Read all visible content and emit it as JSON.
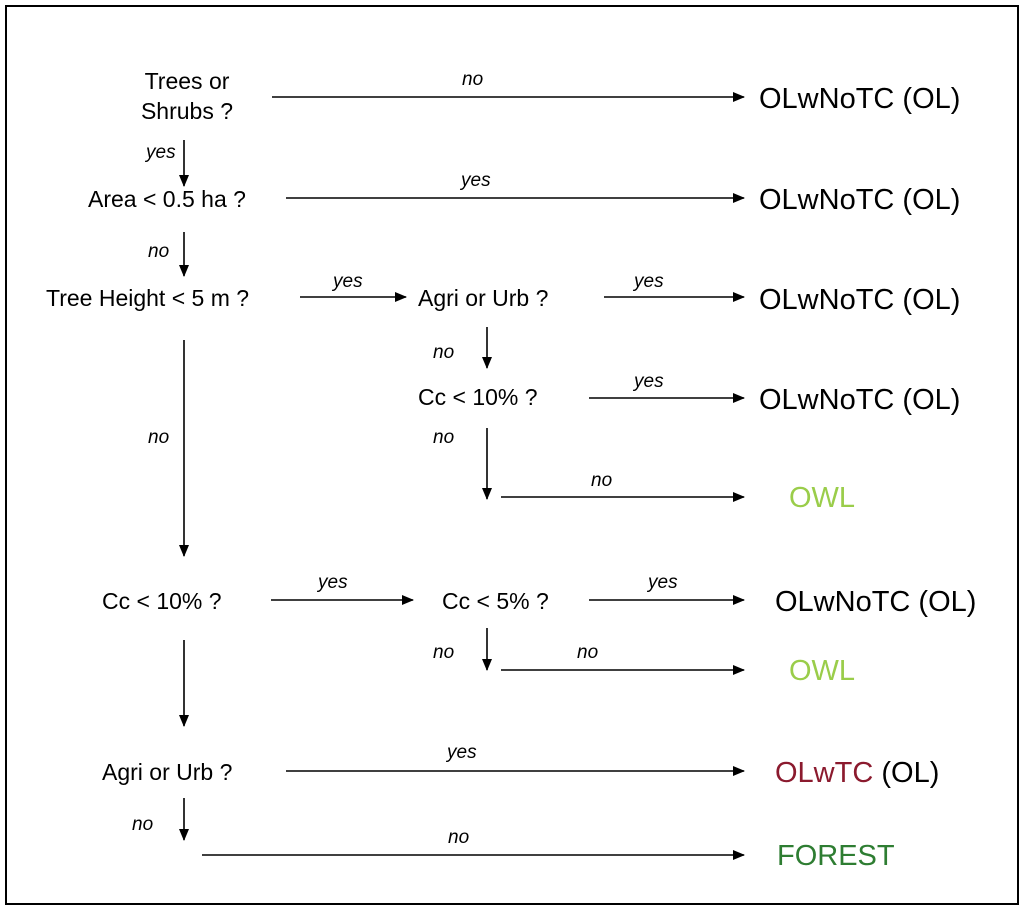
{
  "colors": {
    "owl": "#9acd4a",
    "olwtc": "#8b1a2e",
    "forest": "#2e7d32",
    "text": "#000000"
  },
  "questions": {
    "trees_line1": "Trees or",
    "trees_line2": "Shrubs ?",
    "area": "Area < 0.5 ha ?",
    "height": "Tree Height < 5 m ?",
    "agri1": "Agri or Urb ?",
    "cc10_a": "Cc < 10% ?",
    "cc10_b": "Cc < 10% ?",
    "cc5": "Cc < 5% ?",
    "agri2": "Agri or Urb ?"
  },
  "results": {
    "r1": "OLwNoTC (OL)",
    "r2": "OLwNoTC (OL)",
    "r3": "OLwNoTC (OL)",
    "r4": "OLwNoTC (OL)",
    "r5": "OWL",
    "r6": "OLwNoTC (OL)",
    "r7": "OWL",
    "r8_main": "OLwTC",
    "r8_suffix": " (OL)",
    "r9": "FOREST"
  },
  "labels": {
    "no": "no",
    "yes": "yes"
  }
}
